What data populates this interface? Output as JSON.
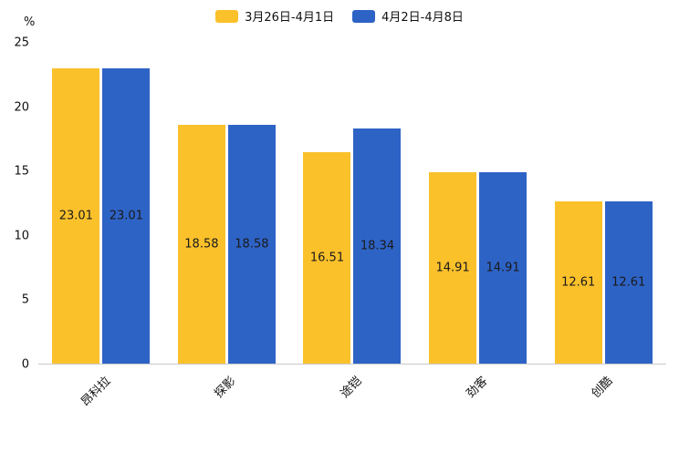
{
  "chart_data": {
    "type": "bar",
    "title": "",
    "categories": [
      "昂科拉",
      "探影",
      "途铠",
      "劲客",
      "创酷"
    ],
    "series": [
      {
        "name": "3月26日-4月1日",
        "color": "#FBC12B",
        "values": [
          23.01,
          18.58,
          16.51,
          14.91,
          12.61
        ]
      },
      {
        "name": "4月2日-4月8日",
        "color": "#2E63C6",
        "values": [
          23.01,
          18.58,
          18.34,
          14.91,
          12.61
        ]
      }
    ],
    "ylabel": "%",
    "ylim": [
      0,
      25
    ],
    "yticks": [
      0,
      5,
      10,
      15,
      20,
      25
    ],
    "grid": false,
    "legend_position": "top",
    "value_labels": true,
    "value_label_decimals": 2,
    "axis_line_color": "#c9c9c9"
  }
}
